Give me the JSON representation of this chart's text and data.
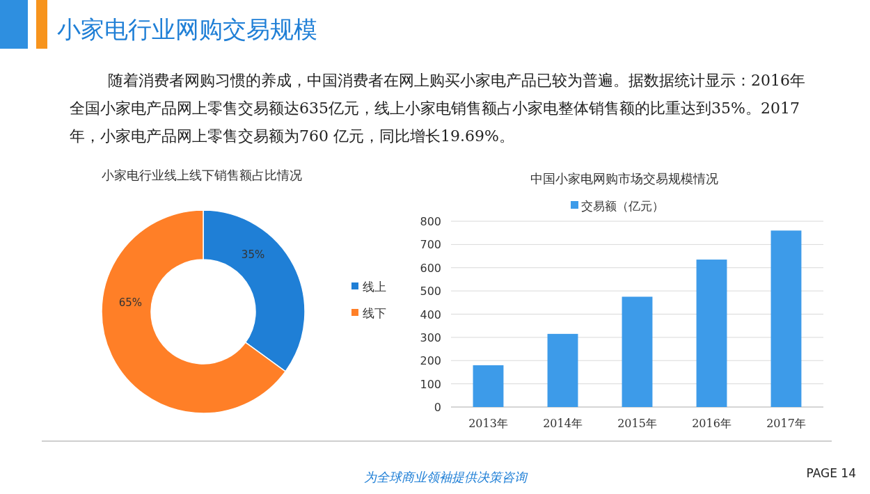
{
  "chart_data": [
    {
      "type": "other",
      "title": "小家电行业网购交易规模",
      "annotations": [
        "随着消费者网购习惯的养成，中国消费者在网上购买小家电产品已较为普遍。据数据统计显示：2016年全国小家电产品网上零售交易额达635亿元，线上小家电销售额占小家电整体销售额的比重达到35%。2017 年，小家电产品网上零售交易额为760  亿元，同比增长19.69%。",
        "为全球商业领袖提供决策咨询",
        "PAGE  14"
      ]
    },
    {
      "type": "donut",
      "title": "小家电行业线上线下销售额占比情况",
      "categories": [
        "线上",
        "线下"
      ],
      "values": [
        35,
        65
      ],
      "colors": [
        "#1f7fd6",
        "#ff7f27"
      ],
      "value_labels": [
        "35%",
        "65%"
      ],
      "legend": "right"
    },
    {
      "type": "bar",
      "title": "中国小家电网购市场交易规模情况",
      "categories": [
        "2013年",
        "2014年",
        "2015年",
        "2016年",
        "2017年"
      ],
      "series": [
        {
          "name": "交易额（亿元）",
          "color": "#3d9be9",
          "values": [
            180,
            315,
            475,
            635,
            760
          ]
        }
      ],
      "ylim": [
        0,
        800
      ],
      "yticks": [
        0,
        100,
        200,
        300,
        400,
        500,
        600,
        700,
        800
      ],
      "grid": "y",
      "legend": "top"
    }
  ]
}
